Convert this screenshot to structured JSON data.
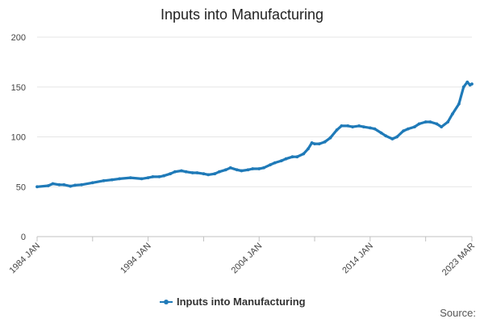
{
  "chart_data": {
    "type": "line",
    "title": "Inputs into Manufacturing",
    "xlabel": "",
    "ylabel": "",
    "x_tick_labels": [
      "1984 JAN",
      "1994 JAN",
      "2004 JAN",
      "2014 JAN",
      "2023 MAR"
    ],
    "x_tick_values": [
      "1984-01",
      "1994-01",
      "2004-01",
      "2014-01",
      "2023-03"
    ],
    "xlim": [
      "1984-01",
      "2023-03"
    ],
    "ylim": [
      0,
      200
    ],
    "y_ticks": [
      0,
      50,
      100,
      150,
      200
    ],
    "grid": true,
    "legend_position": "bottom-center",
    "series": [
      {
        "name": "Inputs into Manufacturing",
        "color": "#1f7ab8",
        "points": [
          [
            "1984-01",
            50
          ],
          [
            "1985-01",
            51
          ],
          [
            "1985-06",
            53
          ],
          [
            "1986-01",
            52
          ],
          [
            "1986-06",
            52
          ],
          [
            "1987-01",
            50.5
          ],
          [
            "1987-06",
            51.5
          ],
          [
            "1988-01",
            52
          ],
          [
            "1989-01",
            54
          ],
          [
            "1990-01",
            56
          ],
          [
            "1990-10",
            57
          ],
          [
            "1991-06",
            58
          ],
          [
            "1992-06",
            59
          ],
          [
            "1993-06",
            58
          ],
          [
            "1994-01",
            59
          ],
          [
            "1994-06",
            60
          ],
          [
            "1995-01",
            60
          ],
          [
            "1995-06",
            61
          ],
          [
            "1996-01",
            63
          ],
          [
            "1996-06",
            65
          ],
          [
            "1997-01",
            66
          ],
          [
            "1997-06",
            65
          ],
          [
            "1998-01",
            64
          ],
          [
            "1998-06",
            64
          ],
          [
            "1999-01",
            63
          ],
          [
            "1999-06",
            62
          ],
          [
            "2000-01",
            63
          ],
          [
            "2000-06",
            65
          ],
          [
            "2001-01",
            67
          ],
          [
            "2001-06",
            69
          ],
          [
            "2002-01",
            67
          ],
          [
            "2002-06",
            66
          ],
          [
            "2003-01",
            67
          ],
          [
            "2003-06",
            68
          ],
          [
            "2004-01",
            68
          ],
          [
            "2004-06",
            69
          ],
          [
            "2005-01",
            72
          ],
          [
            "2005-06",
            74
          ],
          [
            "2006-01",
            76
          ],
          [
            "2006-06",
            78
          ],
          [
            "2007-01",
            80
          ],
          [
            "2007-06",
            80
          ],
          [
            "2008-01",
            83
          ],
          [
            "2008-06",
            88
          ],
          [
            "2008-10",
            94
          ],
          [
            "2009-01",
            93
          ],
          [
            "2009-06",
            93
          ],
          [
            "2009-12",
            95
          ],
          [
            "2010-06",
            99
          ],
          [
            "2011-01",
            107
          ],
          [
            "2011-06",
            111
          ],
          [
            "2012-01",
            111
          ],
          [
            "2012-06",
            110
          ],
          [
            "2013-01",
            111
          ],
          [
            "2013-06",
            110
          ],
          [
            "2014-01",
            109
          ],
          [
            "2014-06",
            108
          ],
          [
            "2015-01",
            104
          ],
          [
            "2015-06",
            101
          ],
          [
            "2016-01",
            98
          ],
          [
            "2016-06",
            100
          ],
          [
            "2017-01",
            106
          ],
          [
            "2017-06",
            108
          ],
          [
            "2018-01",
            110
          ],
          [
            "2018-06",
            113
          ],
          [
            "2019-01",
            115
          ],
          [
            "2019-06",
            115
          ],
          [
            "2020-01",
            113
          ],
          [
            "2020-06",
            110
          ],
          [
            "2021-01",
            115
          ],
          [
            "2021-06",
            123
          ],
          [
            "2022-01",
            133
          ],
          [
            "2022-06",
            150
          ],
          [
            "2022-10",
            155
          ],
          [
            "2023-01",
            152
          ],
          [
            "2023-03",
            153
          ]
        ]
      }
    ]
  },
  "legend": {
    "label": "Inputs into Manufacturing"
  },
  "footer": {
    "source_label": "Source:"
  }
}
